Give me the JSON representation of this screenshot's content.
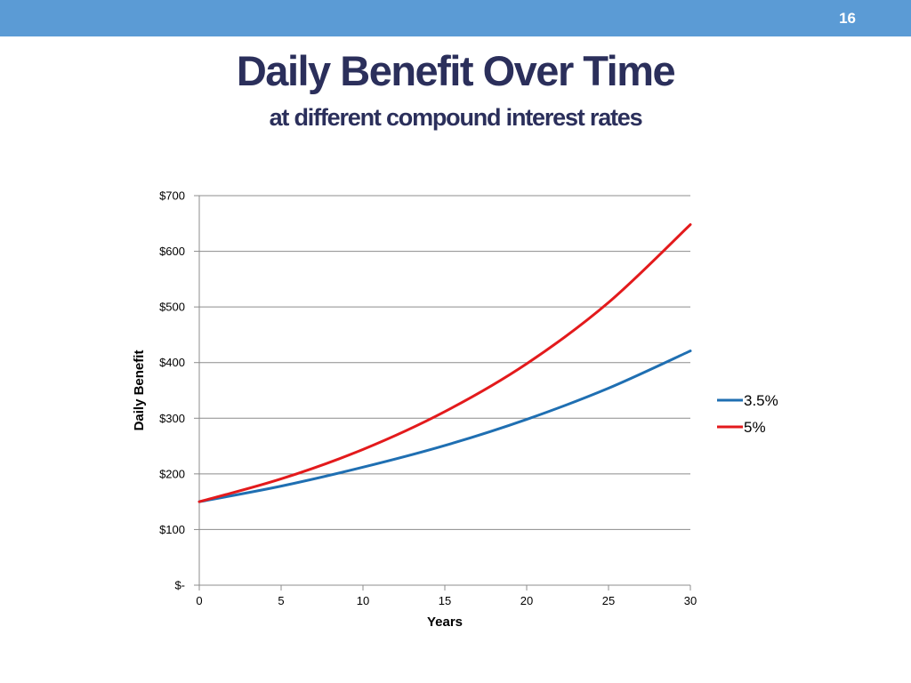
{
  "slide": {
    "number": "16",
    "title": "Daily Benefit Over Time",
    "subtitle": "at different compound interest rates"
  },
  "colors": {
    "bar": "#5b9bd5",
    "title": "#2b2f5b",
    "series_35": "#1f6fb2",
    "series_5": "#e31a1c"
  },
  "chart_data": {
    "type": "line",
    "title": "",
    "xlabel": "Years",
    "ylabel": "Daily Benefit",
    "xlim": [
      0,
      30
    ],
    "ylim": [
      0,
      700
    ],
    "x_ticks": [
      "0",
      "5",
      "10",
      "15",
      "20",
      "25",
      "30"
    ],
    "x_tick_values": [
      0,
      5,
      10,
      15,
      20,
      25,
      30
    ],
    "y_ticks": [
      "$-",
      "$100",
      "$200",
      "$300",
      "$400",
      "$500",
      "$600",
      "$700"
    ],
    "y_tick_values": [
      0,
      100,
      200,
      300,
      400,
      500,
      600,
      700
    ],
    "grid": true,
    "legend_position": "right",
    "x": [
      0,
      5,
      10,
      15,
      20,
      25,
      30
    ],
    "series": [
      {
        "name": "3.5%",
        "color": "#1f6fb2",
        "values": [
          150,
          178,
          212,
          251,
          298,
          354,
          421
        ]
      },
      {
        "name": "5%",
        "color": "#e31a1c",
        "values": [
          150,
          191,
          244,
          312,
          398,
          508,
          648
        ]
      }
    ]
  }
}
